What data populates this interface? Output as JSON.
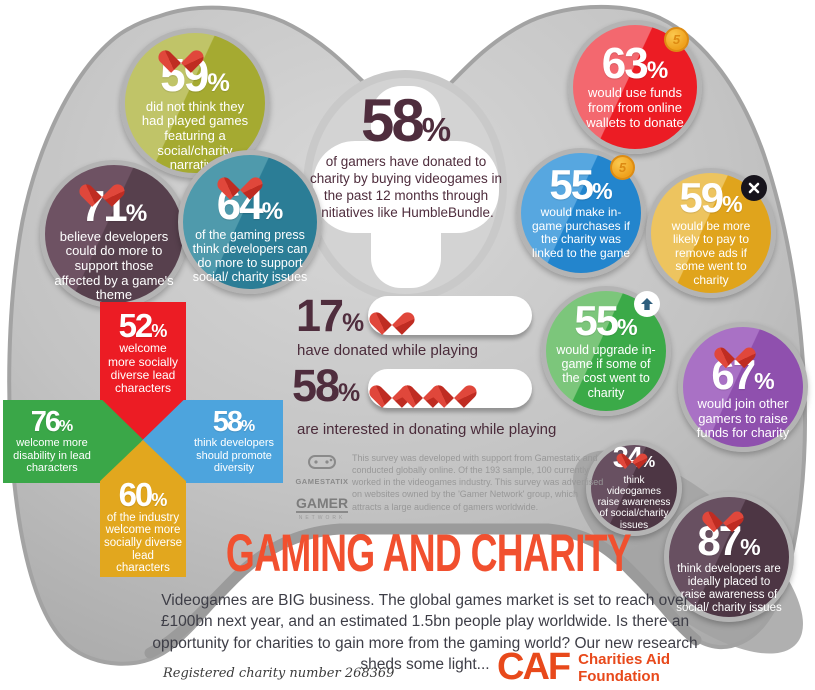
{
  "title": "GAMING AND CHARITY",
  "intro": "Videogames are BIG business. The global games market is set to reach over £100bn next year, and an estimated 1.5bn people play worldwide. Is there an opportunity for charities to gain more from the gaming world? Our new research sheds some light...",
  "center_stat": {
    "value": "58",
    "unit": "%",
    "label": "of gamers have donated to charity by buying videogames in the past 12 months through initiatives like HumbleBundle."
  },
  "bubbles": [
    {
      "value": "59",
      "unit": "%",
      "label": "did not think they had played games featuring a social/charity narrative",
      "icon": "heart",
      "color_light": "#c0c468",
      "color_dark": "#a5aa31"
    },
    {
      "value": "71",
      "unit": "%",
      "label": "believe developers could do more to support those affected by a game's theme",
      "icon": "heart",
      "color_light": "#6e5263",
      "color_dark": "#57404d"
    },
    {
      "value": "64",
      "unit": "%",
      "label": "of the gaming press think developers can do more to support social/ charity issues",
      "icon": "heart",
      "color_light": "#4f9aac",
      "color_dark": "#2b7d96"
    },
    {
      "value": "63",
      "unit": "%",
      "label": "would use funds from from online wallets to donate",
      "icon": "coin",
      "color_light": "#f3686f",
      "color_dark": "#ec1c24"
    },
    {
      "value": "55",
      "unit": "%",
      "label": "would make in-game purchases if the charity was linked to the game",
      "icon": "coin",
      "color_light": "#57a7e0",
      "color_dark": "#2385cd"
    },
    {
      "value": "59",
      "unit": "%",
      "label": "would be more likely to pay to remove ads if some went to charity",
      "icon": "remove",
      "color_light": "#edc45f",
      "color_dark": "#e0a41c"
    },
    {
      "value": "55",
      "unit": "%",
      "label": "would upgrade in-game if some of the cost went to charity",
      "icon": "arrow-up",
      "color_light": "#7cc67b",
      "color_dark": "#3baa48"
    },
    {
      "value": "67",
      "unit": "%",
      "label": "would join other gamers to raise funds for charity",
      "icon": "heart",
      "color_light": "#a971c5",
      "color_dark": "#8f50ae"
    },
    {
      "value": "34",
      "unit": "%",
      "label": "think videogames raise awareness of social/charity issues",
      "icon": "heart",
      "color_light": "#685061",
      "color_dark": "#4d3644"
    },
    {
      "value": "87",
      "unit": "%",
      "label": "think developers are ideally placed to raise awareness of social/ charity issues",
      "icon": "heart",
      "color_light": "#685061",
      "color_dark": "#4d3644"
    }
  ],
  "dpad": [
    {
      "value": "52",
      "unit": "%",
      "label": "welcome more socially diverse lead characters",
      "color": "#ec1c24"
    },
    {
      "value": "76",
      "unit": "%",
      "label": "welcome more disability in lead characters",
      "color": "#3aa748"
    },
    {
      "value": "58",
      "unit": "%",
      "label": "think developers should promote diversity",
      "color": "#4da4dd"
    },
    {
      "value": "60",
      "unit": "%",
      "label": "of the industry welcome more socially diverse lead characters",
      "color": "#e2a71e"
    }
  ],
  "donation_rows": [
    {
      "value": "17",
      "unit": "%",
      "hearts": 1,
      "label": "have donated while playing"
    },
    {
      "value": "58",
      "unit": "%",
      "hearts": 3,
      "label": "are interested in donating while playing"
    }
  ],
  "icons": {
    "coin_label": "5"
  },
  "logos": {
    "gamestatix": "GAMESTATIX",
    "gamer": "GAMER",
    "gamer_sub": "NETWORK"
  },
  "survey_note": "This survey was developed with support from Gamestatix and conducted globally online. Of the 193 sample, 100 currently worked in the videogames industry. This survey was advertised on websites owned by the 'Gamer Network' group, which attracts a large audience of gamers worldwide.",
  "footer": {
    "registered": "Registered charity number 268369",
    "caf_acronym": "CAF",
    "caf_name_line1": "Charities Aid",
    "caf_name_line2": "Foundation",
    "caf_color": "#e8491b",
    "title_color": "#f1502f"
  },
  "chart_data": {
    "type": "table",
    "title": "Gaming and Charity",
    "columns": [
      "percent",
      "statement"
    ],
    "rows": [
      [
        58,
        "of gamers have donated to charity by buying videogames in the past 12 months through initiatives like HumbleBundle."
      ],
      [
        59,
        "did not think they had played games featuring a social/charity narrative"
      ],
      [
        71,
        "believe developers could do more to support those affected by a game's theme"
      ],
      [
        64,
        "of the gaming press think developers can do more to support social/charity issues"
      ],
      [
        63,
        "would use funds from from online wallets to donate"
      ],
      [
        55,
        "would make in-game purchases if the charity was linked to the game"
      ],
      [
        59,
        "would be more likely to pay to remove ads if some went to charity"
      ],
      [
        55,
        "would upgrade in-game if some of the cost went to charity"
      ],
      [
        67,
        "would join other gamers to raise funds for charity"
      ],
      [
        34,
        "think videogames raise awareness of social/charity issues"
      ],
      [
        87,
        "think developers are ideally placed to raise awareness of social/charity issues"
      ],
      [
        52,
        "welcome more socially diverse lead characters"
      ],
      [
        76,
        "welcome more disability in lead characters"
      ],
      [
        58,
        "think developers should promote diversity"
      ],
      [
        60,
        "of the industry welcome more socially diverse lead characters"
      ],
      [
        17,
        "have donated while playing"
      ],
      [
        58,
        "are interested in donating while playing"
      ]
    ]
  }
}
